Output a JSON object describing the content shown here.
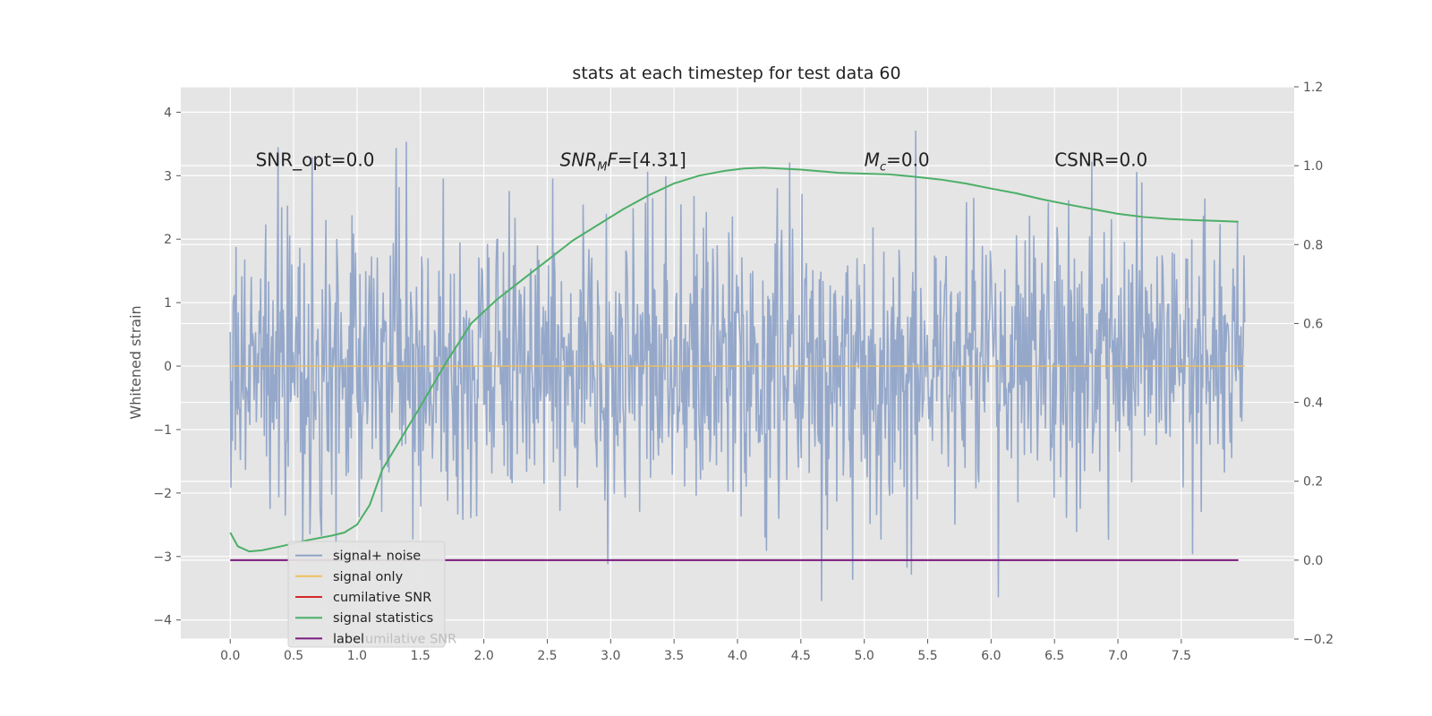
{
  "chart_data": {
    "type": "line",
    "title": "stats at each timestep for test data 60",
    "ylabel": "Whitened strain",
    "xlabel": "",
    "xlim": [
      -0.39,
      8.39
    ],
    "ylim": [
      -4.3,
      4.4
    ],
    "y2lim": [
      -0.2,
      1.2
    ],
    "x_ticks": [
      "0.0",
      "0.5",
      "1.0",
      "1.5",
      "2.0",
      "2.5",
      "3.0",
      "3.5",
      "4.0",
      "4.5",
      "5.0",
      "5.5",
      "6.0",
      "6.5",
      "7.0",
      "7.5"
    ],
    "y_ticks": [
      "−4",
      "−3",
      "−2",
      "−1",
      "0",
      "1",
      "2",
      "3",
      "4"
    ],
    "y2_ticks": [
      "−0.2",
      "0.0",
      "0.2",
      "0.4",
      "0.6",
      "0.8",
      "1.0",
      "1.2"
    ],
    "grid": true,
    "legend_position": "lower-left",
    "annotations": [
      {
        "text": "SNR_opt=0.0",
        "x": 0.2,
        "y": 3.15
      },
      {
        "text": "SNR_MF=[4.31]",
        "main": "SNR",
        "sub": "M",
        "tail": "F=[4.31]",
        "x": 2.6,
        "y": 3.15
      },
      {
        "text": "M_c=0.0",
        "main": "M",
        "sub": "c",
        "tail": "=0.0",
        "x": 5.0,
        "y": 3.15
      },
      {
        "text": "CSNR=0.0",
        "x": 6.5,
        "y": 3.15
      }
    ],
    "series": [
      {
        "name": "signal+ noise",
        "color": "#8ea3c8",
        "axis": "left",
        "kind": "noise",
        "x_range": [
          0.0,
          8.0
        ],
        "mean": 0.0,
        "std": 1.0,
        "min": -3.9,
        "max": 4.0
      },
      {
        "name": "signal only",
        "color": "#f0c05a",
        "axis": "left",
        "x": [
          0.0,
          8.0
        ],
        "y": [
          0.0,
          0.0
        ]
      },
      {
        "name": "cumilative SNR",
        "color": "#d62728",
        "axis": "right",
        "x": [],
        "y": []
      },
      {
        "name": "signal statistics",
        "color": "#4caf68",
        "axis": "right",
        "x": [
          0.0,
          0.06,
          0.15,
          0.25,
          0.4,
          0.6,
          0.8,
          0.9,
          1.0,
          1.1,
          1.2,
          1.35,
          1.5,
          1.7,
          1.9,
          2.1,
          2.3,
          2.5,
          2.7,
          2.9,
          3.1,
          3.3,
          3.5,
          3.7,
          3.9,
          4.05,
          4.2,
          4.5,
          4.8,
          5.0,
          5.2,
          5.4,
          5.6,
          5.8,
          6.0,
          6.2,
          6.4,
          6.6,
          6.8,
          7.0,
          7.2,
          7.4,
          7.6,
          7.8,
          7.95
        ],
        "y": [
          0.07,
          0.035,
          0.022,
          0.025,
          0.035,
          0.05,
          0.062,
          0.07,
          0.09,
          0.14,
          0.23,
          0.31,
          0.39,
          0.5,
          0.6,
          0.66,
          0.71,
          0.76,
          0.81,
          0.85,
          0.89,
          0.925,
          0.955,
          0.975,
          0.987,
          0.993,
          0.995,
          0.99,
          0.982,
          0.98,
          0.978,
          0.972,
          0.965,
          0.955,
          0.942,
          0.93,
          0.915,
          0.902,
          0.89,
          0.878,
          0.87,
          0.865,
          0.862,
          0.86,
          0.858
        ]
      },
      {
        "name": "label",
        "color": "#7b1a7e",
        "axis": "right",
        "x": [
          0.0,
          7.95
        ],
        "y": [
          0.0,
          0.0
        ]
      }
    ]
  },
  "legend_ghost_text": "umilative SNR"
}
